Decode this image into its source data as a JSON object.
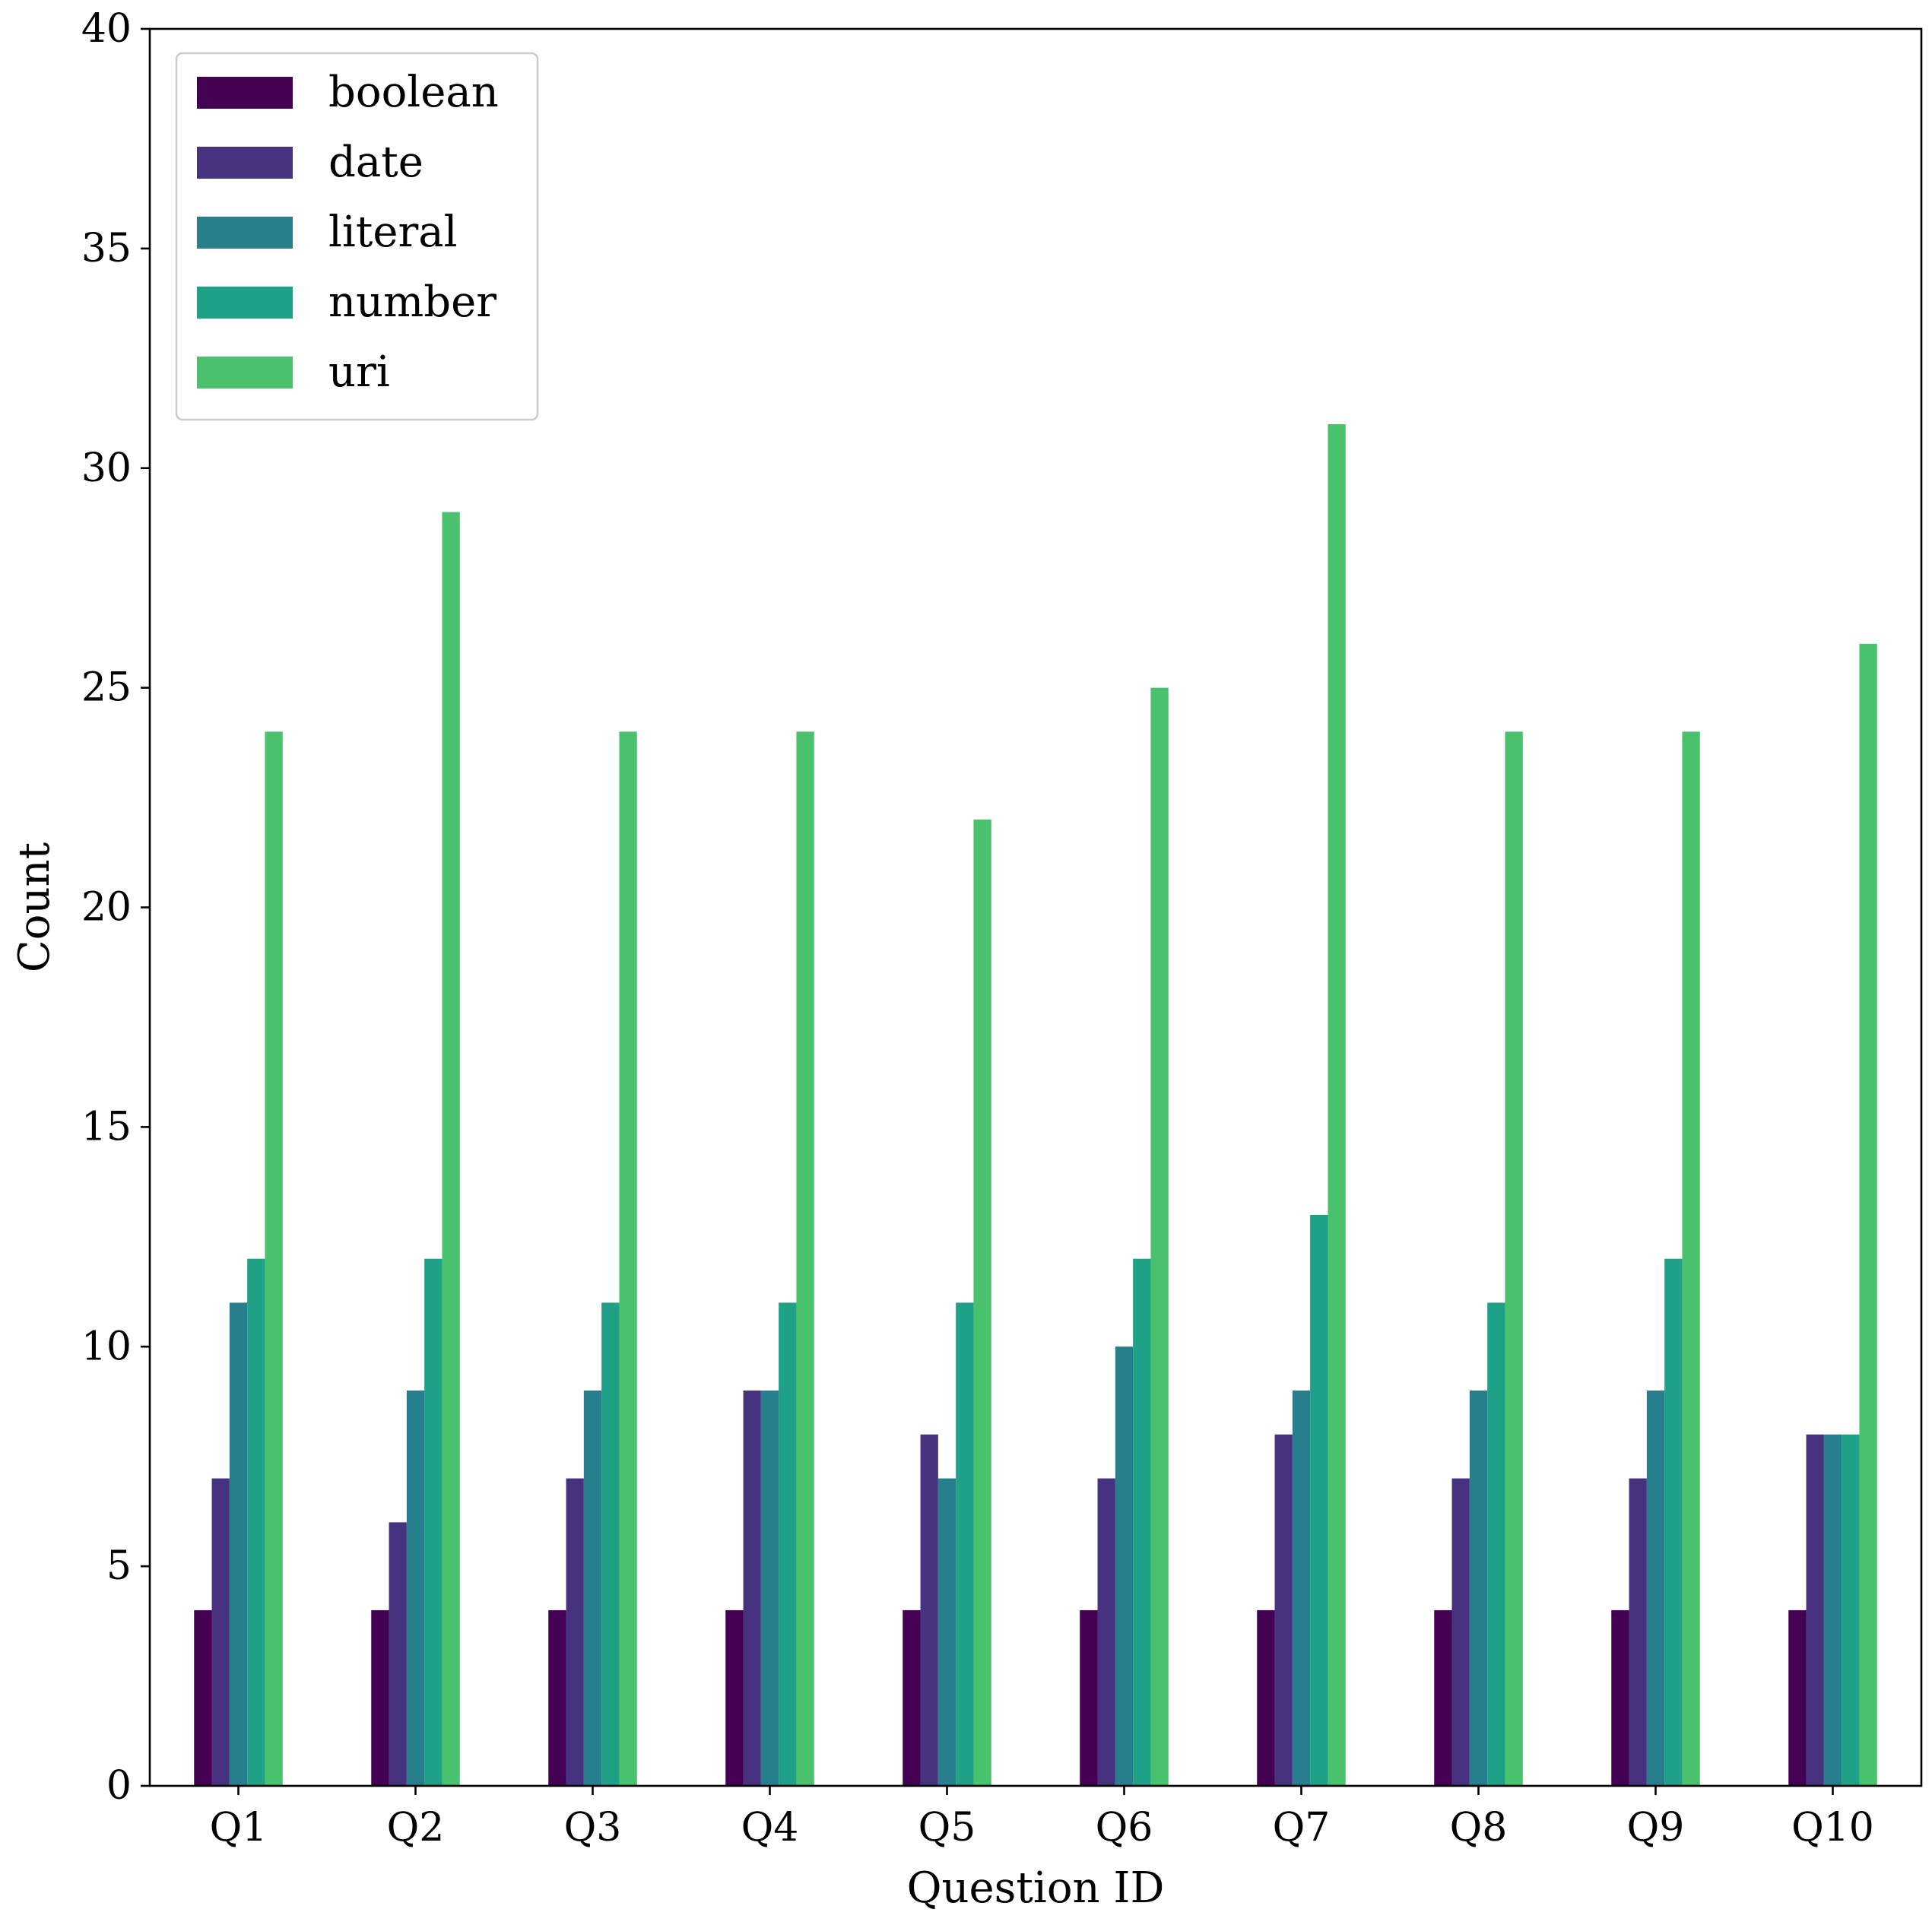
{
  "chart_data": {
    "type": "bar",
    "xlabel": "Question ID",
    "ylabel": "Count",
    "categories": [
      "Q1",
      "Q2",
      "Q3",
      "Q4",
      "Q5",
      "Q6",
      "Q7",
      "Q8",
      "Q9",
      "Q10"
    ],
    "series": [
      {
        "name": "boolean",
        "color": "#440154",
        "values": [
          4,
          4,
          4,
          4,
          4,
          4,
          4,
          4,
          4,
          4
        ]
      },
      {
        "name": "date",
        "color": "#46327e",
        "values": [
          7,
          6,
          7,
          9,
          8,
          7,
          8,
          7,
          7,
          8
        ]
      },
      {
        "name": "literal",
        "color": "#277f8e",
        "values": [
          11,
          9,
          9,
          9,
          7,
          10,
          9,
          9,
          9,
          8
        ]
      },
      {
        "name": "number",
        "color": "#1fa187",
        "values": [
          12,
          12,
          11,
          11,
          11,
          12,
          13,
          11,
          12,
          8
        ]
      },
      {
        "name": "uri",
        "color": "#4ac16d",
        "values": [
          24,
          29,
          24,
          24,
          22,
          25,
          31,
          24,
          24,
          26
        ]
      }
    ],
    "ylim": [
      0,
      40
    ],
    "yticks": [
      0,
      5,
      10,
      15,
      20,
      25,
      30,
      35,
      40
    ],
    "grid": false,
    "legend_position": "upper-left"
  }
}
